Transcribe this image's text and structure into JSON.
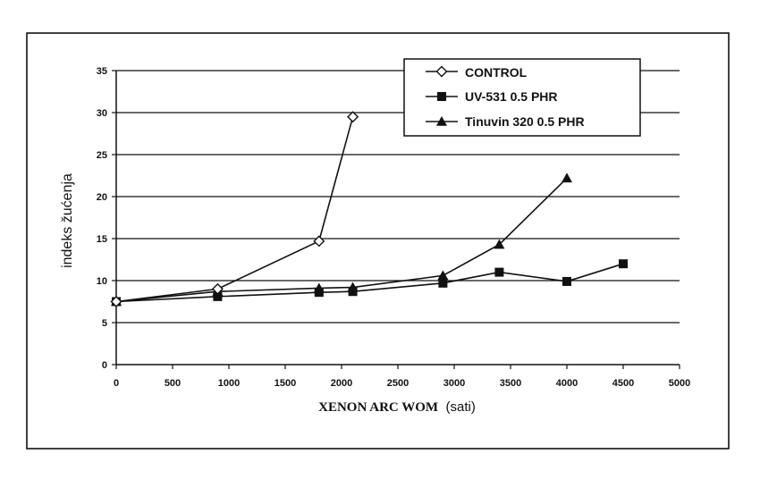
{
  "chart_data": {
    "type": "line",
    "xlabel_main": "XENON ARC WOM",
    "xlabel_unit": "(sati)",
    "ylabel": "indeks žućenja",
    "xlim": [
      0,
      5000
    ],
    "ylim": [
      0,
      35
    ],
    "x_ticks": [
      0,
      500,
      1000,
      1500,
      2000,
      2500,
      3000,
      3500,
      4000,
      4500,
      5000
    ],
    "y_ticks": [
      0,
      5,
      10,
      15,
      20,
      25,
      30,
      35
    ],
    "grid": "horizontal",
    "legend_position": "top-right",
    "series": [
      {
        "name": "CONTROL",
        "marker": "diamond-open",
        "points": [
          [
            0,
            7.5
          ],
          [
            900,
            9.0
          ],
          [
            1800,
            14.7
          ],
          [
            2100,
            29.5
          ]
        ]
      },
      {
        "name": "UV-531 0.5 PHR",
        "marker": "square",
        "points": [
          [
            0,
            7.5
          ],
          [
            900,
            8.1
          ],
          [
            1800,
            8.6
          ],
          [
            2100,
            8.7
          ],
          [
            2900,
            9.7
          ],
          [
            3400,
            11.0
          ],
          [
            4000,
            9.9
          ],
          [
            4500,
            12.0
          ]
        ]
      },
      {
        "name": "Tinuvin 320 0.5 PHR",
        "marker": "triangle",
        "points": [
          [
            0,
            7.5
          ],
          [
            900,
            8.7
          ],
          [
            1800,
            9.1
          ],
          [
            2100,
            9.2
          ],
          [
            2900,
            10.6
          ],
          [
            3400,
            14.3
          ],
          [
            4000,
            22.2
          ]
        ]
      }
    ]
  }
}
